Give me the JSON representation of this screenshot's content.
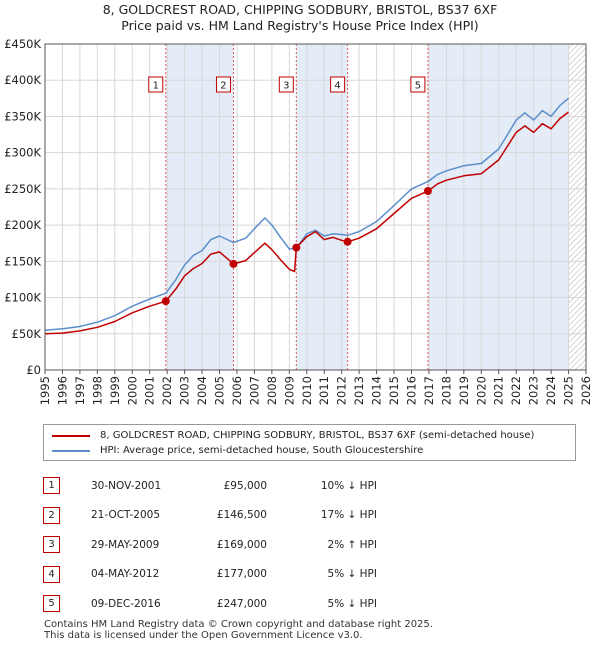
{
  "title_line1": "8, GOLDCREST ROAD, CHIPPING SODBURY, BRISTOL, BS37 6XF",
  "title_line2": "Price paid vs. HM Land Registry's House Price Index (HPI)",
  "colors": {
    "property": "#c00000",
    "hpi": "#5b8fcc",
    "shade": "#e4ecf7",
    "grid": "#d8d8d8",
    "marker_border": "#c00000"
  },
  "legend": {
    "property_label": "8, GOLDCREST ROAD, CHIPPING SODBURY, BRISTOL, BS37 6XF (semi-detached house)",
    "hpi_label": "HPI: Average price, semi-detached house, South Gloucestershire"
  },
  "transactions": [
    {
      "num": "1",
      "date": "30-NOV-2001",
      "price": "£95,000",
      "hpi": "10% ↓ HPI"
    },
    {
      "num": "2",
      "date": "21-OCT-2005",
      "price": "£146,500",
      "hpi": "17% ↓ HPI"
    },
    {
      "num": "3",
      "date": "29-MAY-2009",
      "price": "£169,000",
      "hpi": "2% ↑ HPI"
    },
    {
      "num": "4",
      "date": "04-MAY-2012",
      "price": "£177,000",
      "hpi": "5% ↓ HPI"
    },
    {
      "num": "5",
      "date": "09-DEC-2016",
      "price": "£247,000",
      "hpi": "5% ↓ HPI"
    }
  ],
  "footer_line1": "Contains HM Land Registry data © Crown copyright and database right 2025.",
  "footer_line2": "This data is licensed under the Open Government Licence v3.0.",
  "chart_data": {
    "type": "line",
    "title": "8, GOLDCREST ROAD, CHIPPING SODBURY, BRISTOL, BS37 6XF",
    "subtitle": "Price paid vs. HM Land Registry's House Price Index (HPI)",
    "xlabel": "",
    "ylabel": "",
    "xlim": [
      1995,
      2026
    ],
    "ylim": [
      0,
      450000
    ],
    "y_ticks": [
      0,
      50000,
      100000,
      150000,
      200000,
      250000,
      300000,
      350000,
      400000,
      450000
    ],
    "y_tick_labels": [
      "£0",
      "£50K",
      "£100K",
      "£150K",
      "£200K",
      "£250K",
      "£300K",
      "£350K",
      "£400K",
      "£450K"
    ],
    "x_ticks": [
      1995,
      1996,
      1997,
      1998,
      1999,
      2000,
      2001,
      2002,
      2003,
      2004,
      2005,
      2006,
      2007,
      2008,
      2009,
      2010,
      2011,
      2012,
      2013,
      2014,
      2015,
      2016,
      2017,
      2018,
      2019,
      2020,
      2021,
      2022,
      2023,
      2024,
      2025,
      2026
    ],
    "x_tick_labels": [
      "1995",
      "1996",
      "1997",
      "1998",
      "1999",
      "2000",
      "2001",
      "2002",
      "2003",
      "2004",
      "2005",
      "2006",
      "2007",
      "2008",
      "2009",
      "2010",
      "2011",
      "2012",
      "2013",
      "2014",
      "2015",
      "2016",
      "2017",
      "2018",
      "2019",
      "2020",
      "2021",
      "2022",
      "2023",
      "2024",
      "2025",
      "2026"
    ],
    "grid": true,
    "shaded_ranges": [
      [
        2001.92,
        2005.8
      ],
      [
        2009.4,
        2012.34
      ],
      [
        2016.94,
        2025.0
      ]
    ],
    "hatched_range": [
      2025.0,
      2026
    ],
    "series": [
      {
        "name": "HPI: Average price, semi-detached house, South Gloucestershire",
        "x": [
          1995,
          1996,
          1997,
          1998,
          1999,
          2000,
          2001,
          2001.92,
          2002.5,
          2003,
          2003.5,
          2004,
          2004.5,
          2005,
          2005.8,
          2006.5,
          2007,
          2007.6,
          2008,
          2008.5,
          2009,
          2009.4,
          2010,
          2010.5,
          2011,
          2011.5,
          2012,
          2012.34,
          2013,
          2014,
          2015,
          2016,
          2016.94,
          2017.5,
          2018,
          2019,
          2020,
          2021,
          2021.5,
          2022,
          2022.5,
          2023,
          2023.5,
          2024,
          2024.5,
          2025
        ],
        "y": [
          55000,
          57000,
          60000,
          66000,
          75000,
          88000,
          98000,
          106000,
          125000,
          145000,
          158000,
          165000,
          180000,
          185000,
          176000,
          182000,
          195000,
          210000,
          200000,
          183000,
          167000,
          168000,
          188000,
          193000,
          185000,
          188000,
          187000,
          186000,
          191000,
          205000,
          227000,
          250000,
          260000,
          270000,
          275000,
          282000,
          285000,
          305000,
          325000,
          345000,
          355000,
          345000,
          358000,
          350000,
          365000,
          375000
        ]
      },
      {
        "name": "8, GOLDCREST ROAD, CHIPPING SODBURY, BRISTOL, BS37 6XF (semi-detached house)",
        "x": [
          1995,
          1996,
          1997,
          1998,
          1999,
          2000,
          2001,
          2001.92,
          2002.5,
          2003,
          2003.5,
          2004,
          2004.5,
          2005,
          2005.8,
          2006.5,
          2007,
          2007.6,
          2008,
          2008.5,
          2009,
          2009.3,
          2009.4,
          2010,
          2010.5,
          2011,
          2011.5,
          2012,
          2012.34,
          2013,
          2014,
          2015,
          2016,
          2016.94,
          2017.5,
          2018,
          2019,
          2020,
          2021,
          2021.5,
          2022,
          2022.5,
          2023,
          2023.5,
          2024,
          2024.5,
          2025
        ],
        "y": [
          50000,
          51000,
          54000,
          59000,
          67000,
          79000,
          88000,
          95000,
          112000,
          130000,
          140000,
          147000,
          160000,
          163000,
          146500,
          151000,
          162000,
          175000,
          166000,
          152000,
          139000,
          136000,
          169000,
          184000,
          191000,
          180000,
          183000,
          179000,
          177000,
          182000,
          195000,
          216000,
          237000,
          247000,
          257000,
          262000,
          268000,
          271000,
          290000,
          309000,
          328000,
          337000,
          328000,
          340000,
          333000,
          347000,
          356000
        ]
      }
    ],
    "sales": [
      {
        "label": "1",
        "x": 2001.92,
        "y": 95000
      },
      {
        "label": "2",
        "x": 2005.8,
        "y": 146500
      },
      {
        "label": "3",
        "x": 2009.4,
        "y": 169000
      },
      {
        "label": "4",
        "x": 2012.34,
        "y": 177000
      },
      {
        "label": "5",
        "x": 2016.94,
        "y": 247000
      }
    ]
  }
}
